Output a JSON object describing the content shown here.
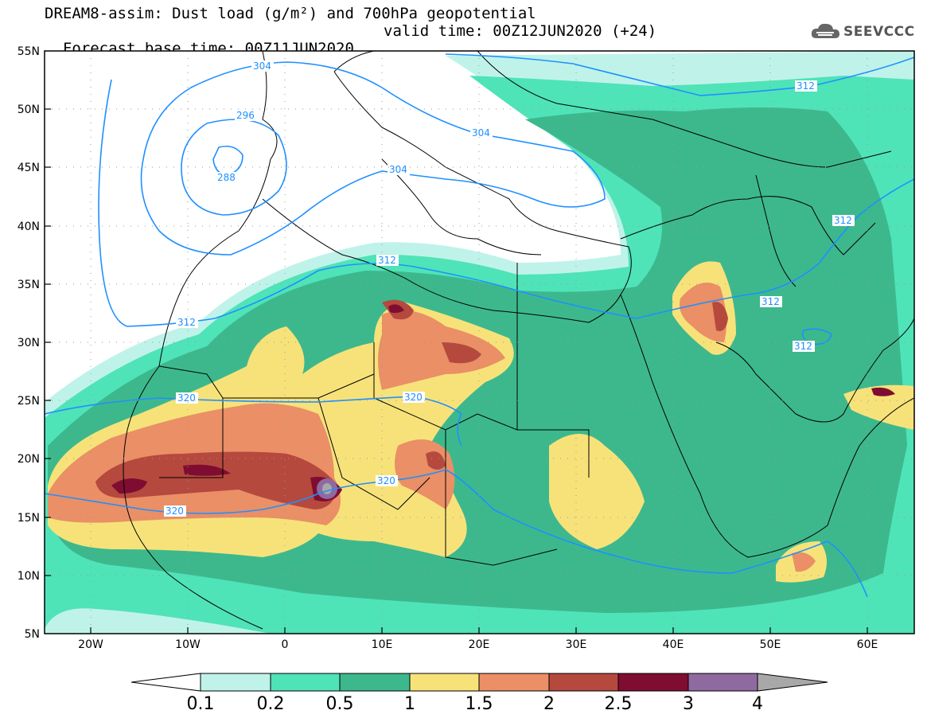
{
  "title": {
    "line1": "DREAM8-assim: Dust load (g/m²) and 700hPa geopotential",
    "line2_base": "Forecast base time: 00Z11JUN2020",
    "line2_valid": "valid time: 00Z12JUN2020 (+24)"
  },
  "logo": {
    "text": "SEEVCCC",
    "icon": "cloud-icon"
  },
  "map": {
    "lon_labels": [
      "20W",
      "10W",
      "0",
      "10E",
      "20E",
      "30E",
      "40E",
      "50E",
      "60E"
    ],
    "lat_labels": [
      "55N",
      "50N",
      "45N",
      "40N",
      "35N",
      "30N",
      "25N",
      "20N",
      "15N",
      "10N",
      "5N"
    ],
    "contour_labels": [
      "304",
      "296",
      "288",
      "304",
      "304",
      "312",
      "312",
      "312",
      "312",
      "312",
      "320",
      "320",
      "320",
      "320",
      "312"
    ]
  },
  "colorbar": {
    "tick_labels": [
      "0.1",
      "0.2",
      "0.5",
      "1",
      "1.5",
      "2",
      "2.5",
      "3",
      "4"
    ],
    "colors": [
      "#ffffff",
      "#bff3e9",
      "#4fe3b8",
      "#3db88d",
      "#f7e27a",
      "#ea8f66",
      "#b5493e",
      "#7f0d31",
      "#8f6aa0",
      "#a8a8a8"
    ]
  }
}
